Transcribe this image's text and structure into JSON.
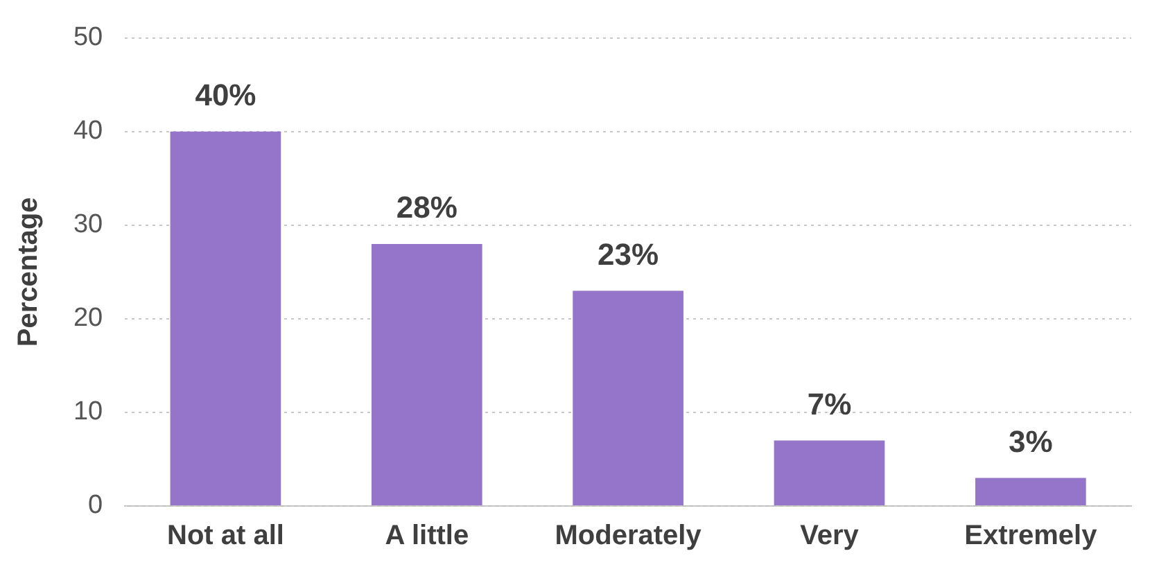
{
  "chart_data": {
    "type": "bar",
    "ylabel": "Percentage",
    "categories": [
      "Not at all",
      "A little",
      "Moderately",
      "Very",
      "Extremely"
    ],
    "values": [
      40,
      28,
      23,
      7,
      3
    ],
    "color": "#9575c9",
    "value_labels": [
      "40%",
      "28%",
      "23%",
      "7%",
      "3%"
    ],
    "ylim": [
      0,
      50
    ],
    "yticks": [
      0,
      10,
      20,
      30,
      40,
      50
    ],
    "grid": "y",
    "legend": false
  }
}
